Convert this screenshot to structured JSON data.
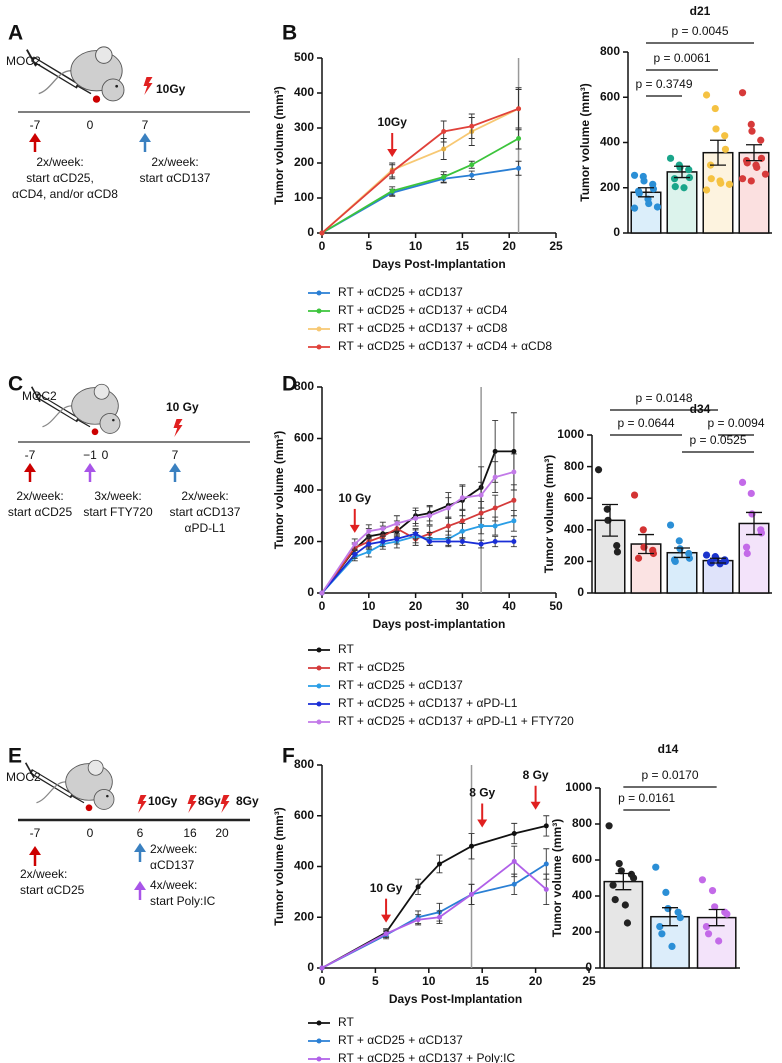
{
  "panels": [
    "A",
    "B",
    "C",
    "D",
    "E",
    "F"
  ],
  "schematics": [
    {
      "texts": [
        "MOC2",
        "10Gy",
        "-7",
        "0",
        "7",
        "2x/week:",
        "start αCD25,",
        "αCD4, and/or αCD8",
        "2x/week:",
        "start αCD137"
      ]
    },
    {
      "texts": [
        "MOC2",
        "10 Gy",
        "-7",
        "−1",
        "0",
        "7",
        "2x/week:",
        "start αCD25",
        "3x/week:",
        "start FTY720",
        "2x/week:",
        "start αCD137",
        "αPD-L1"
      ]
    },
    {
      "texts": [
        "MOC2",
        "10Gy",
        "8Gy",
        "8Gy",
        "-7",
        "0",
        "6",
        "16",
        "20",
        "2x/week:",
        "start αCD25",
        "2x/week:",
        "αCD137",
        "4x/week:",
        "start Poly:IC"
      ]
    }
  ],
  "chart_data": [
    {
      "type": "line",
      "xlabel": "Days Post-Implantation",
      "ylabel": "Tumor volume (mm³)",
      "x": [
        0,
        7.5,
        13,
        16,
        21
      ],
      "xlim": [
        0,
        25
      ],
      "xticks": [
        0,
        5,
        10,
        15,
        20,
        25
      ],
      "ylim": [
        0,
        500
      ],
      "yticks": [
        0,
        100,
        200,
        300,
        400,
        500
      ],
      "vline": 21,
      "annotations": [
        {
          "text": "10Gy",
          "x": 7.5
        }
      ],
      "series": [
        {
          "name": "RT + αCD25 + αCD137",
          "color": "#2a7fd4",
          "values": [
            0,
            115,
            155,
            165,
            185
          ],
          "errors": [
            0,
            10,
            12,
            12,
            20
          ]
        },
        {
          "name": "RT + αCD25 + αCD137 + αCD4",
          "color": "#3cc43c",
          "values": [
            0,
            120,
            160,
            195,
            270
          ],
          "errors": [
            0,
            12,
            15,
            10,
            30
          ]
        },
        {
          "name": "RT + αCD25 + αCD137 + αCD8",
          "color": "#f7c873",
          "values": [
            0,
            180,
            240,
            290,
            355
          ],
          "errors": [
            0,
            20,
            30,
            40,
            55
          ]
        },
        {
          "name": "RT + αCD25 + αCD137 + αCD4 + αCD8",
          "color": "#e0413a",
          "values": [
            0,
            175,
            290,
            305,
            355
          ],
          "errors": [
            0,
            20,
            30,
            35,
            60
          ]
        }
      ]
    },
    {
      "type": "bar",
      "title": "d21",
      "ylabel": "Tumor volume (mm³)",
      "ylim": [
        0,
        800
      ],
      "yticks": [
        0,
        200,
        400,
        600,
        800
      ],
      "values": [
        180,
        270,
        355,
        355
      ],
      "errors": [
        20,
        25,
        55,
        35
      ],
      "colors": [
        "#dbeefa",
        "#dcf3ec",
        "#fdf3df",
        "#fbe0e0"
      ],
      "point_colors": [
        "#2b8fd6",
        "#1aa58a",
        "#f5c242",
        "#d63a3a"
      ],
      "points": [
        [
          255,
          250,
          230,
          215,
          195,
          185,
          175,
          150,
          130,
          115,
          110
        ],
        [
          330,
          300,
          290,
          280,
          245,
          240,
          205,
          200
        ],
        [
          610,
          550,
          460,
          430,
          370,
          300,
          240,
          230,
          220,
          215,
          190
        ],
        [
          620,
          480,
          450,
          410,
          330,
          320,
          310,
          300,
          290,
          260,
          240,
          230
        ]
      ],
      "comparisons": [
        {
          "between": [
            0,
            1
          ],
          "label": "p = 0.3749"
        },
        {
          "between": [
            0,
            2
          ],
          "label": "p = 0.0061"
        },
        {
          "between": [
            0,
            3
          ],
          "label": "p = 0.0045"
        }
      ]
    },
    {
      "type": "line",
      "xlabel": "Days post-implantation",
      "ylabel": "Tumor volume (mm³)",
      "x": [
        0,
        7,
        10,
        13,
        16,
        20,
        23,
        27,
        30,
        34,
        37,
        41
      ],
      "xlim": [
        0,
        50
      ],
      "xticks": [
        0,
        10,
        20,
        30,
        40,
        50
      ],
      "ylim": [
        0,
        800
      ],
      "yticks": [
        0,
        200,
        400,
        600,
        800
      ],
      "vline": 34,
      "annotations": [
        {
          "text": "10 Gy",
          "x": 7
        }
      ],
      "series": [
        {
          "name": "RT",
          "color": "#111111",
          "values": [
            0,
            170,
            220,
            230,
            240,
            300,
            310,
            340,
            360,
            410,
            550,
            550
          ],
          "errors": [
            0,
            20,
            30,
            30,
            25,
            30,
            30,
            50,
            60,
            80,
            120,
            150
          ]
        },
        {
          "name": "RT + αCD25",
          "color": "#d43a3a",
          "values": [
            0,
            175,
            200,
            220,
            250,
            210,
            230,
            260,
            280,
            310,
            330,
            360
          ],
          "errors": [
            0,
            20,
            25,
            30,
            30,
            25,
            30,
            35,
            40,
            45,
            50,
            60
          ]
        },
        {
          "name": "RT + αCD25 + αCD137",
          "color": "#2a9ee6",
          "values": [
            0,
            140,
            160,
            190,
            200,
            220,
            210,
            210,
            240,
            260,
            260,
            280
          ],
          "errors": [
            0,
            15,
            20,
            20,
            25,
            25,
            25,
            30,
            30,
            30,
            35,
            40
          ]
        },
        {
          "name": "RT + αCD25 + αCD137 + αPD-L1",
          "color": "#1a2ed6",
          "values": [
            0,
            150,
            190,
            200,
            210,
            230,
            200,
            200,
            200,
            190,
            200,
            200
          ],
          "errors": [
            0,
            15,
            20,
            20,
            20,
            20,
            15,
            15,
            15,
            15,
            20,
            20
          ]
        },
        {
          "name": "RT + αCD25 + αCD137 + αPD-L1 + FTY720",
          "color": "#c27ae8",
          "values": [
            0,
            190,
            240,
            250,
            270,
            290,
            300,
            330,
            370,
            380,
            450,
            470
          ],
          "errors": [
            0,
            20,
            25,
            25,
            30,
            30,
            35,
            40,
            45,
            50,
            60,
            70
          ]
        }
      ]
    },
    {
      "type": "bar",
      "title": "d34",
      "ylabel": "Tumor volume (mm³)",
      "ylim": [
        0,
        1000
      ],
      "yticks": [
        0,
        200,
        400,
        600,
        800,
        1000
      ],
      "values": [
        460,
        310,
        255,
        205,
        440
      ],
      "errors": [
        100,
        60,
        30,
        15,
        70
      ],
      "colors": [
        "#e6e6e6",
        "#fbe3e3",
        "#d9ecfa",
        "#dfe3fa",
        "#f3e3fa"
      ],
      "point_colors": [
        "#222222",
        "#d33333",
        "#2b8fd6",
        "#1a33cc",
        "#c36ae8"
      ],
      "points": [
        [
          780,
          530,
          460,
          300,
          260
        ],
        [
          620,
          400,
          290,
          270,
          250,
          220
        ],
        [
          430,
          330,
          280,
          250,
          220,
          210,
          200
        ],
        [
          240,
          230,
          220,
          210,
          200,
          195,
          190,
          185
        ],
        [
          700,
          630,
          500,
          400,
          380,
          290,
          250
        ]
      ],
      "comparisons": [
        {
          "between": [
            0,
            3
          ],
          "label": "p = 0.0148"
        },
        {
          "between": [
            0,
            2
          ],
          "label": "p = 0.0644"
        },
        {
          "between": [
            3,
            4
          ],
          "label": "p = 0.0094"
        },
        {
          "between": [
            2,
            4
          ],
          "label": "p = 0.0525"
        }
      ]
    },
    {
      "type": "line",
      "xlabel": "Days Post-Implantation",
      "ylabel": "Tumor volume (mm³)",
      "x": [
        0,
        6,
        9,
        11,
        14,
        18,
        21
      ],
      "xlim": [
        0,
        25
      ],
      "xticks": [
        0,
        5,
        10,
        15,
        20,
        25
      ],
      "ylim": [
        0,
        800
      ],
      "yticks": [
        0,
        200,
        400,
        600,
        800
      ],
      "vline": 14,
      "annotations": [
        {
          "text": "10 Gy",
          "x": 6
        },
        {
          "text": "8 Gy",
          "x": 15
        },
        {
          "text": "8 Gy",
          "x": 20
        }
      ],
      "series": [
        {
          "name": "RT",
          "color": "#111111",
          "values": [
            0,
            140,
            320,
            410,
            480,
            530,
            560
          ],
          "errors": [
            0,
            15,
            30,
            35,
            50,
            40,
            40
          ]
        },
        {
          "name": "RT + αCD25 + αCD137",
          "color": "#2a7fd4",
          "values": [
            0,
            130,
            200,
            220,
            290,
            330,
            410
          ],
          "errors": [
            0,
            15,
            25,
            35,
            40,
            40,
            60
          ]
        },
        {
          "name": "RT + αCD25 + αCD137 + Poly:IC",
          "color": "#b060e8",
          "values": [
            0,
            135,
            190,
            200,
            290,
            420,
            310
          ],
          "errors": [
            0,
            15,
            20,
            25,
            40,
            60,
            60
          ]
        }
      ]
    },
    {
      "type": "bar",
      "title": "d14",
      "ylabel": "Tumor volume (mm³)",
      "ylim": [
        0,
        1000
      ],
      "yticks": [
        0,
        200,
        400,
        600,
        800,
        1000
      ],
      "values": [
        480,
        285,
        280
      ],
      "errors": [
        45,
        50,
        45
      ],
      "colors": [
        "#e6e6e6",
        "#dcedfa",
        "#f3e3fa"
      ],
      "point_colors": [
        "#222222",
        "#2b8fd6",
        "#c36ae8"
      ],
      "points": [
        [
          790,
          580,
          540,
          520,
          500,
          460,
          380,
          350,
          250
        ],
        [
          560,
          420,
          330,
          310,
          280,
          230,
          190,
          120
        ],
        [
          490,
          430,
          340,
          310,
          300,
          230,
          190,
          150
        ]
      ],
      "comparisons": [
        {
          "between": [
            0,
            2
          ],
          "label": "p = 0.0170"
        },
        {
          "between": [
            0,
            1
          ],
          "label": "p = 0.0161"
        }
      ]
    }
  ]
}
